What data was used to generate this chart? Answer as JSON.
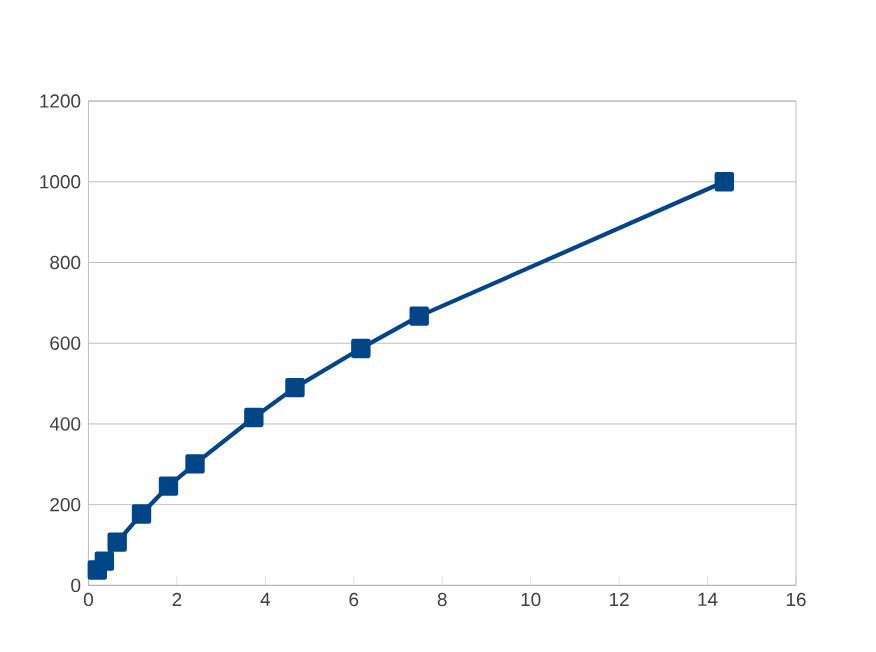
{
  "chart_data": {
    "type": "line",
    "x": [
      0.2,
      0.36,
      0.65,
      1.2,
      1.81,
      2.41,
      3.74,
      4.67,
      6.16,
      7.48,
      14.38
    ],
    "series": [
      {
        "color": "#004586",
        "values": [
          38,
          60,
          107,
          177,
          246,
          301,
          416,
          490,
          587,
          667,
          1000
        ]
      }
    ],
    "xlim": [
      0,
      16
    ],
    "xticks": [
      0,
      2,
      4,
      6,
      8,
      10,
      12,
      14,
      16
    ],
    "ylim": [
      0,
      1200
    ],
    "yticks": [
      0,
      200,
      400,
      600,
      800,
      1000,
      1200
    ],
    "grid": "y",
    "marker": "square",
    "line_style": "solid"
  }
}
